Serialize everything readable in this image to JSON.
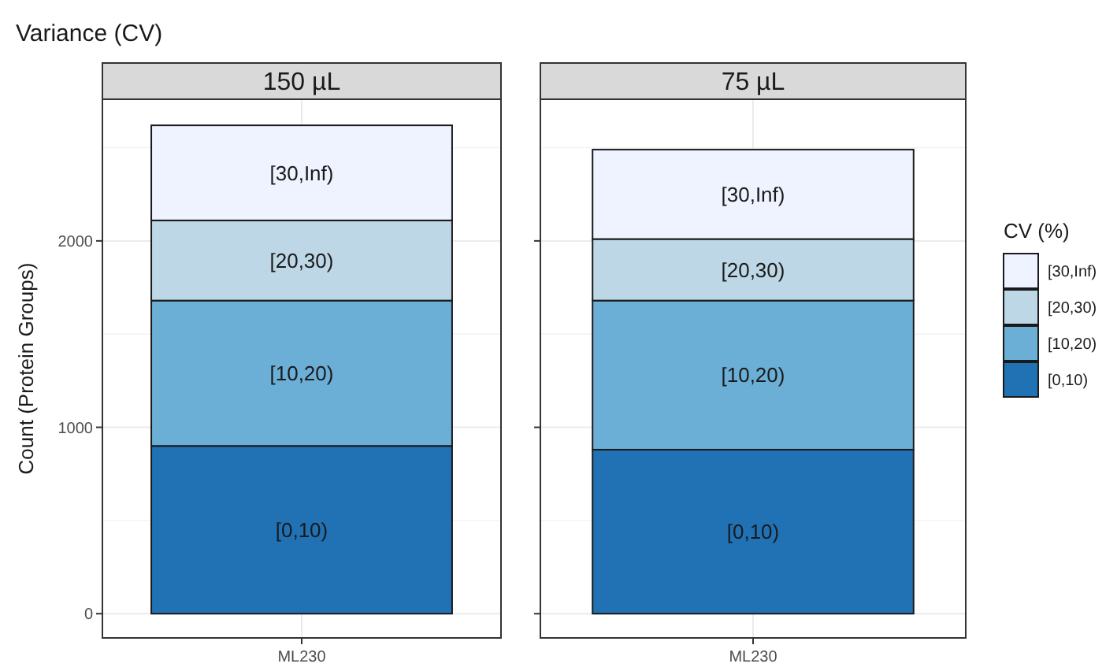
{
  "chart_data": [
    {
      "type": "bar",
      "title": "Variance (CV)",
      "subtitle": "150 µL",
      "ylabel": "Count (Protein Groups)",
      "categories": [
        "ML230"
      ],
      "stacked": true,
      "ylim": [
        -130,
        2760
      ],
      "yticks": [
        0,
        1000,
        2000
      ],
      "grid": true,
      "legend": false,
      "series": [
        {
          "name": "[0,10)",
          "color": "#2171b5",
          "values": [
            900
          ]
        },
        {
          "name": "[10,20)",
          "color": "#6baed6",
          "values": [
            780
          ]
        },
        {
          "name": "[20,30)",
          "color": "#bdd7e7",
          "values": [
            430
          ]
        },
        {
          "name": "[30,Inf)",
          "color": "#eff3ff",
          "values": [
            510
          ]
        }
      ]
    },
    {
      "type": "bar",
      "subtitle": "75 µL",
      "categories": [
        "ML230"
      ],
      "stacked": true,
      "ylim": [
        -130,
        2760
      ],
      "yticks": [
        0,
        1000,
        2000
      ],
      "grid": true,
      "tick_labels": "x",
      "legend": "right",
      "legend_title": "CV (%)",
      "series": [
        {
          "name": "[0,10)",
          "color": "#2171b5",
          "values": [
            880
          ]
        },
        {
          "name": "[10,20)",
          "color": "#6baed6",
          "values": [
            800
          ]
        },
        {
          "name": "[20,30)",
          "color": "#bdd7e7",
          "values": [
            330
          ]
        },
        {
          "name": "[30,Inf)",
          "color": "#eff3ff",
          "values": [
            480
          ]
        }
      ]
    }
  ]
}
